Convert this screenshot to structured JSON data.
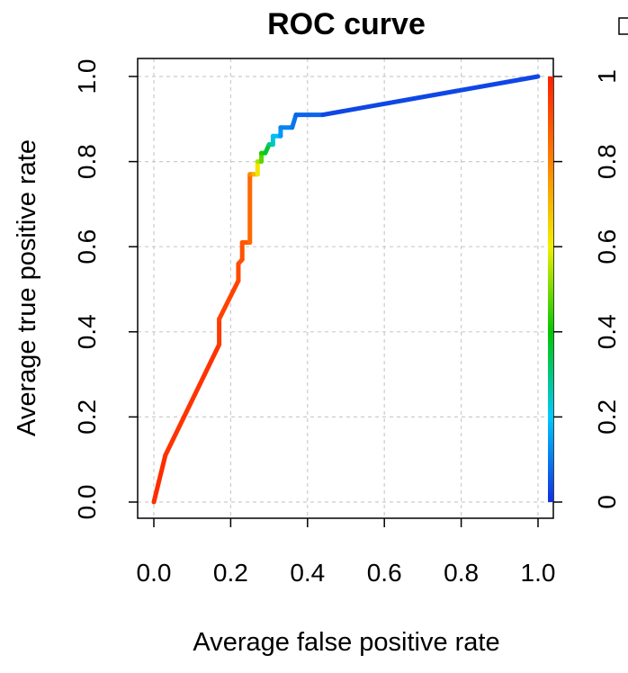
{
  "chart_data": {
    "type": "line",
    "title": "ROC curve",
    "xlabel": "Average false positive rate",
    "ylabel": "Average true positive rate",
    "xlim": [
      0,
      1
    ],
    "ylim": [
      0,
      1
    ],
    "x_ticks": [
      "0.0",
      "0.2",
      "0.4",
      "0.6",
      "0.8",
      "1.0"
    ],
    "y_ticks": [
      "0.0",
      "0.2",
      "0.4",
      "0.6",
      "0.8",
      "1.0"
    ],
    "grid": true,
    "colorbar": {
      "position": "right",
      "ticks": [
        "0",
        "0.2",
        "0.4",
        "0.6",
        "0.8",
        "1"
      ],
      "colormap": [
        "#1030e0",
        "#00c8ff",
        "#00c800",
        "#f0f000",
        "#ff8000",
        "#ff2000"
      ]
    },
    "series": [
      {
        "points": [
          {
            "x": 0.0,
            "y": 0.0,
            "c": 0.98
          },
          {
            "x": 0.03,
            "y": 0.11,
            "c": 0.97
          },
          {
            "x": 0.17,
            "y": 0.37,
            "c": 0.95
          },
          {
            "x": 0.17,
            "y": 0.43,
            "c": 0.94
          },
          {
            "x": 0.22,
            "y": 0.52,
            "c": 0.92
          },
          {
            "x": 0.22,
            "y": 0.56,
            "c": 0.91
          },
          {
            "x": 0.23,
            "y": 0.57,
            "c": 0.9
          },
          {
            "x": 0.23,
            "y": 0.61,
            "c": 0.89
          },
          {
            "x": 0.25,
            "y": 0.61,
            "c": 0.88
          },
          {
            "x": 0.25,
            "y": 0.77,
            "c": 0.82
          },
          {
            "x": 0.26,
            "y": 0.77,
            "c": 0.75
          },
          {
            "x": 0.27,
            "y": 0.77,
            "c": 0.66
          },
          {
            "x": 0.27,
            "y": 0.8,
            "c": 0.58
          },
          {
            "x": 0.28,
            "y": 0.8,
            "c": 0.5
          },
          {
            "x": 0.28,
            "y": 0.82,
            "c": 0.45
          },
          {
            "x": 0.29,
            "y": 0.82,
            "c": 0.4
          },
          {
            "x": 0.3,
            "y": 0.84,
            "c": 0.33
          },
          {
            "x": 0.31,
            "y": 0.84,
            "c": 0.27
          },
          {
            "x": 0.31,
            "y": 0.86,
            "c": 0.22
          },
          {
            "x": 0.33,
            "y": 0.86,
            "c": 0.15
          },
          {
            "x": 0.33,
            "y": 0.88,
            "c": 0.12
          },
          {
            "x": 0.36,
            "y": 0.88,
            "c": 0.1
          },
          {
            "x": 0.37,
            "y": 0.91,
            "c": 0.08
          },
          {
            "x": 0.44,
            "y": 0.91,
            "c": 0.06
          },
          {
            "x": 1.0,
            "y": 1.0,
            "c": 0.0
          }
        ]
      }
    ]
  }
}
